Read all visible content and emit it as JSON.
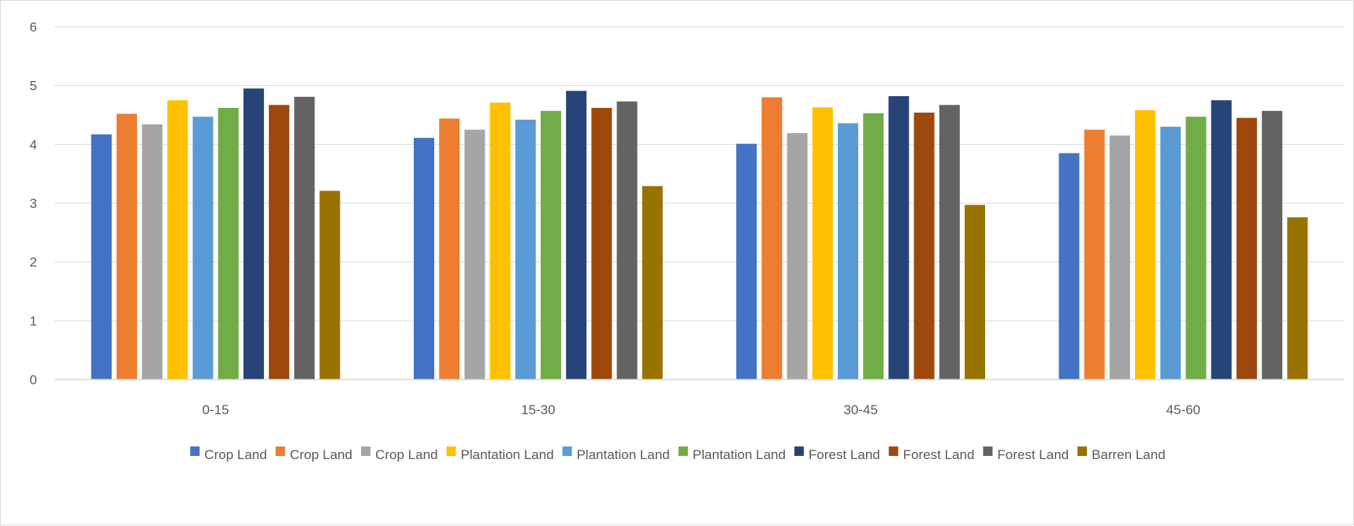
{
  "chart_data": {
    "type": "bar",
    "title": "",
    "xlabel": "",
    "ylabel": "",
    "ylim": [
      0,
      6
    ],
    "yticks": [
      "0",
      "1",
      "2",
      "3",
      "4",
      "5",
      "6"
    ],
    "grid": true,
    "legend_position": "bottom",
    "categories": [
      "0-15",
      "15-30",
      "30-45",
      "45-60"
    ],
    "series": [
      {
        "name": "Crop Land",
        "color": "#4472C4",
        "values": [
          4.17,
          4.11,
          4.01,
          3.85
        ]
      },
      {
        "name": "Crop Land",
        "color": "#ED7D31",
        "values": [
          4.52,
          4.44,
          4.8,
          4.25
        ]
      },
      {
        "name": "Crop Land",
        "color": "#A5A5A5",
        "values": [
          4.34,
          4.25,
          4.19,
          4.15
        ]
      },
      {
        "name": "Plantation Land",
        "color": "#FFC000",
        "values": [
          4.75,
          4.71,
          4.63,
          4.58
        ]
      },
      {
        "name": "Plantation Land",
        "color": "#5B9BD5",
        "values": [
          4.47,
          4.42,
          4.36,
          4.3
        ]
      },
      {
        "name": "Plantation Land",
        "color": "#70AD47",
        "values": [
          4.62,
          4.57,
          4.53,
          4.47
        ]
      },
      {
        "name": "Forest Land",
        "color": "#264478",
        "values": [
          4.95,
          4.91,
          4.82,
          4.75
        ]
      },
      {
        "name": "Forest Land",
        "color": "#9E480E",
        "values": [
          4.67,
          4.62,
          4.54,
          4.45
        ]
      },
      {
        "name": "Forest Land",
        "color": "#636363",
        "values": [
          4.81,
          4.73,
          4.67,
          4.57
        ]
      },
      {
        "name": "Barren Land",
        "color": "#997300",
        "values": [
          3.21,
          3.29,
          2.97,
          2.76
        ]
      }
    ]
  }
}
